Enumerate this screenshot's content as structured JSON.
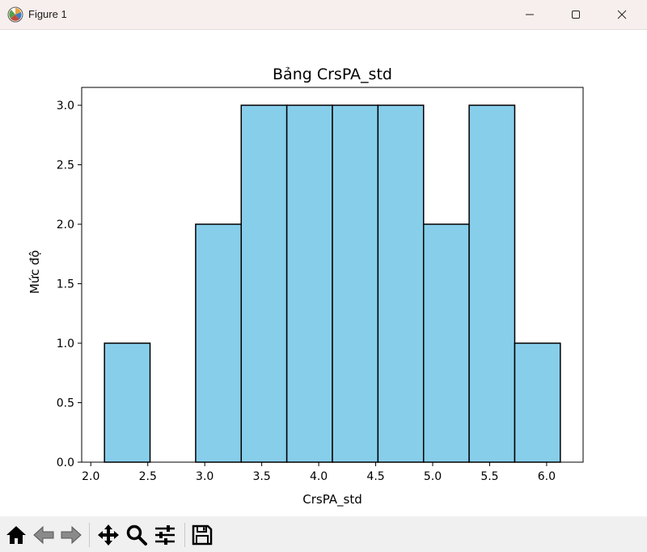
{
  "window": {
    "title": "Figure 1",
    "app_icon": "matplotlib-icon",
    "controls": [
      "minimize-icon",
      "maximize-icon",
      "close-icon"
    ]
  },
  "toolbar": {
    "buttons": [
      "home-icon",
      "back-arrow-icon",
      "forward-arrow-icon",
      "pan-move-icon",
      "zoom-magnifier-icon",
      "configure-subplots-icon",
      "save-floppy-icon"
    ]
  },
  "colors": {
    "bar_fill": "#87ceeb",
    "bar_edge": "#000000",
    "titlebar_bg": "#f7efed",
    "toolbar_bg": "#f0f0f0"
  },
  "chart_data": {
    "type": "bar",
    "subtype": "histogram",
    "title": "Bảng CrsPA_std",
    "xlabel": "CrsPA_std",
    "ylabel": "Mức độ",
    "bin_edges": [
      2.12,
      2.52,
      2.92,
      3.32,
      3.72,
      4.12,
      4.52,
      4.92,
      5.32,
      5.72,
      6.12
    ],
    "values": [
      1,
      0,
      2,
      3,
      3,
      3,
      3,
      2,
      3,
      1
    ],
    "xlim": [
      1.92,
      6.32
    ],
    "ylim": [
      0,
      3.15
    ],
    "xticks": [
      2.0,
      2.5,
      3.0,
      3.5,
      4.0,
      4.5,
      5.0,
      5.5,
      6.0
    ],
    "xtick_labels": [
      "2.0",
      "2.5",
      "3.0",
      "3.5",
      "4.0",
      "4.5",
      "5.0",
      "5.5",
      "6.0"
    ],
    "yticks": [
      0,
      0.5,
      1.0,
      1.5,
      2.0,
      2.5,
      3.0
    ],
    "ytick_labels": [
      "0.0",
      "0.5",
      "1.0",
      "1.5",
      "2.0",
      "2.5",
      "3.0"
    ],
    "grid": false,
    "legend": "none"
  }
}
